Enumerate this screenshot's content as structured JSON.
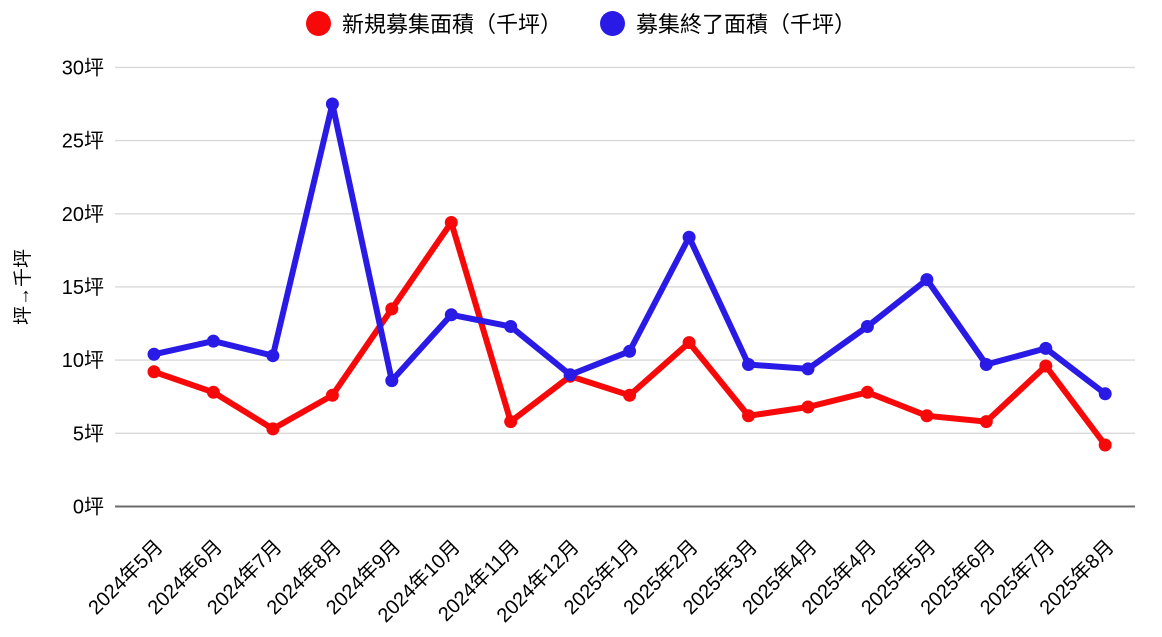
{
  "chart_data": {
    "type": "line",
    "categories": [
      "2024年5月",
      "2024年6月",
      "2024年7月",
      "2024年8月",
      "2024年9月",
      "2024年10月",
      "2024年11月",
      "2024年12月",
      "2025年1月",
      "2025年2月",
      "2025年3月",
      "2025年4月",
      "2025年4月",
      "2025年5月",
      "2025年6月",
      "2025年7月",
      "2025年8月"
    ],
    "series": [
      {
        "name": "新規募集面積（千坪）",
        "color": "#f70909",
        "values": [
          9.2,
          7.8,
          5.3,
          7.6,
          13.5,
          19.4,
          5.8,
          8.9,
          7.6,
          11.2,
          6.2,
          6.8,
          7.8,
          6.2,
          5.8,
          9.6,
          4.2
        ]
      },
      {
        "name": "募集終了面積（千坪）",
        "color": "#2a1ae6",
        "values": [
          10.4,
          11.3,
          10.3,
          27.5,
          8.6,
          13.1,
          12.3,
          9.0,
          10.6,
          18.4,
          9.7,
          9.4,
          12.3,
          15.5,
          9.7,
          10.8,
          7.7
        ]
      }
    ],
    "title": "",
    "xlabel": "",
    "ylabel": "坪→千坪",
    "y_ticks": [
      "0坪",
      "5坪",
      "10坪",
      "15坪",
      "20坪",
      "25坪",
      "30坪"
    ],
    "ylim": [
      0,
      30
    ],
    "y_tick_step": 5,
    "grid": true,
    "legend_position": "top",
    "marker": "circle",
    "colors": {
      "grid": "#d9d9d9",
      "axis": "#6b6b6b",
      "text": "#000000",
      "background": "#ffffff"
    }
  }
}
